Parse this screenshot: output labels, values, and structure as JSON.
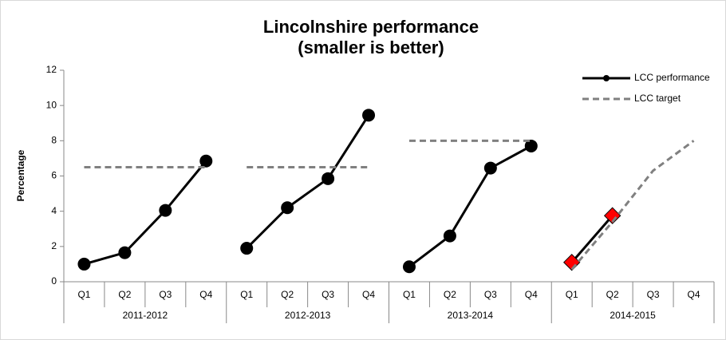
{
  "chart_data": {
    "type": "line",
    "title": [
      "Lincolnshire performance",
      "(smaller is better)"
    ],
    "y_label": "Percentage",
    "categories": [
      "Q1",
      "Q2",
      "Q3",
      "Q4",
      "Q1",
      "Q2",
      "Q3",
      "Q4",
      "Q1",
      "Q2",
      "Q3",
      "Q4",
      "Q1",
      "Q2",
      "Q3",
      "Q4"
    ],
    "groups": [
      "2011-2012",
      "2012-2013",
      "2013-2014",
      "2014-2015"
    ],
    "series": [
      {
        "name": "LCC performance",
        "color": "#000000",
        "marker": "circle",
        "highlight": {
          "indices": [
            12,
            13
          ],
          "color": "#ff0000",
          "marker": "diamond"
        },
        "values": [
          1.0,
          1.65,
          4.05,
          6.85,
          1.9,
          4.2,
          5.85,
          9.45,
          0.85,
          2.6,
          6.45,
          7.7,
          1.1,
          3.75,
          null,
          null
        ]
      },
      {
        "name": "LCC target",
        "color": "#808080",
        "dash": true,
        "values": [
          6.5,
          6.5,
          6.5,
          6.5,
          6.5,
          6.5,
          6.5,
          6.5,
          8.0,
          8.0,
          8.0,
          8.0,
          0.7,
          3.4,
          6.3,
          8.0
        ]
      }
    ],
    "ylim": [
      0,
      12
    ],
    "yticks": [
      0,
      2,
      4,
      6,
      8,
      10,
      12
    ],
    "grid": false,
    "legend": "top-right"
  }
}
